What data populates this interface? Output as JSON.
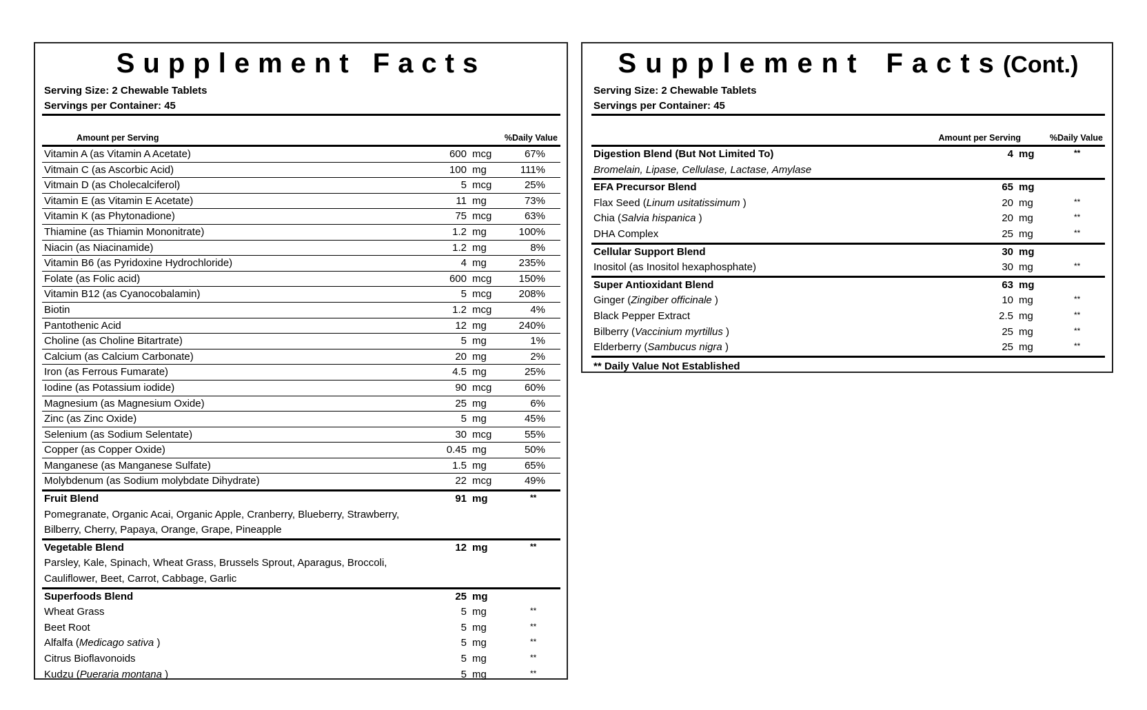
{
  "left": {
    "title": "Supplement Facts",
    "serving_size": "Serving Size: 2 Chewable Tablets",
    "servings_per_container": "Servings per Container: 45",
    "header_amount": "Amount per Serving",
    "header_dv": "%Daily Value",
    "vitamins": [
      {
        "name": "Vitamin A (as Vitamin A Acetate)",
        "amount": "600",
        "unit": "mcg",
        "dv": "67%"
      },
      {
        "name": "Vitmain C (as Ascorbic Acid)",
        "amount": "100",
        "unit": "mg",
        "dv": "111%"
      },
      {
        "name": "Vitmain D (as Cholecalciferol)",
        "amount": "5",
        "unit": "mcg",
        "dv": "25%"
      },
      {
        "name": "Vitamin E (as Vitamin E Acetate)",
        "amount": "11",
        "unit": "mg",
        "dv": "73%"
      },
      {
        "name": "Vitamin K (as Phytonadione)",
        "amount": "75",
        "unit": "mcg",
        "dv": "63%"
      },
      {
        "name": "Thiamine (as Thiamin Mononitrate)",
        "amount": "1.2",
        "unit": "mg",
        "dv": "100%"
      },
      {
        "name": "Niacin (as Niacinamide)",
        "amount": "1.2",
        "unit": "mg",
        "dv": "8%"
      },
      {
        "name": "Vitamin B6 (as Pyridoxine Hydrochloride)",
        "amount": "4",
        "unit": "mg",
        "dv": "235%"
      },
      {
        "name": "Folate (as Folic acid)",
        "amount": "600",
        "unit": "mcg",
        "dv": "150%"
      },
      {
        "name": "Vitamin B12 (as Cyanocobalamin)",
        "amount": "5",
        "unit": "mcg",
        "dv": "208%"
      },
      {
        "name": "Biotin",
        "amount": "1.2",
        "unit": "mcg",
        "dv": "4%"
      },
      {
        "name": "Pantothenic Acid",
        "amount": "12",
        "unit": "mg",
        "dv": "240%"
      },
      {
        "name": "Choline (as Choline Bitartrate)",
        "amount": "5",
        "unit": "mg",
        "dv": "1%"
      },
      {
        "name": "Calcium (as Calcium Carbonate)",
        "amount": "20",
        "unit": "mg",
        "dv": "2%"
      },
      {
        "name": "Iron (as Ferrous Fumarate)",
        "amount": "4.5",
        "unit": "mg",
        "dv": "25%"
      },
      {
        "name": "Iodine (as Potassium iodide)",
        "amount": "90",
        "unit": "mcg",
        "dv": "60%"
      },
      {
        "name": "Magnesium (as Magnesium Oxide)",
        "amount": "25",
        "unit": "mg",
        "dv": "6%"
      },
      {
        "name": "Zinc (as Zinc Oxide)",
        "amount": "5",
        "unit": "mg",
        "dv": "45%"
      },
      {
        "name": "Selenium (as Sodium Selentate)",
        "amount": "30",
        "unit": "mcg",
        "dv": "55%"
      },
      {
        "name": "Copper (as Copper Oxide)",
        "amount": "0.45",
        "unit": "mg",
        "dv": "50%"
      },
      {
        "name": "Manganese (as Manganese Sulfate)",
        "amount": "1.5",
        "unit": "mg",
        "dv": "65%"
      },
      {
        "name": "Molybdenum (as Sodium molybdate Dihydrate)",
        "amount": "22",
        "unit": "mcg",
        "dv": "49%"
      }
    ],
    "blends": [
      {
        "name": "Fruit Blend",
        "amount": "91",
        "unit": "mg",
        "dv": "**",
        "lines": [
          "Pomegranate, Organic Acai, Organic Apple, Cranberry, Blueberry, Strawberry,",
          "Bilberry, Cherry, Papaya, Orange, Grape, Pineapple"
        ]
      },
      {
        "name": "Vegetable Blend",
        "amount": "12",
        "unit": "mg",
        "dv": "**",
        "lines": [
          "Parsley, Kale, Spinach, Wheat Grass, Brussels Sprout, Aparagus, Broccoli,",
          "Cauliflower, Beet, Carrot, Cabbage, Garlic"
        ]
      },
      {
        "name": "Superfoods Blend",
        "amount": "25",
        "unit": "mg",
        "dv": "",
        "items": [
          {
            "name": "Wheat Grass",
            "latin": "",
            "amount": "5",
            "unit": "mg",
            "dv": "**"
          },
          {
            "name": "Beet Root",
            "latin": "",
            "amount": "5",
            "unit": "mg",
            "dv": "**"
          },
          {
            "name": "Alfalfa",
            "latin": "Medicago sativa",
            "amount": "5",
            "unit": "mg",
            "dv": "**"
          },
          {
            "name": "Citrus Bioflavonoids",
            "latin": "",
            "amount": "5",
            "unit": "mg",
            "dv": "**"
          },
          {
            "name": "Kudzu",
            "latin": "Pueraria montana",
            "amount": "5",
            "unit": "mg",
            "dv": "**"
          }
        ]
      }
    ]
  },
  "right": {
    "title_a": "Supplement",
    "title_b": "Facts",
    "title_cont": "(Cont.)",
    "serving_size": "Serving Size: 2 Chewable Tablets",
    "servings_per_container": "Servings per Container: 45",
    "header_amount": "Amount per Serving",
    "header_dv": "%Daily Value",
    "blends": [
      {
        "name": "Digestion Blend (But Not Limited To)",
        "amount": "4",
        "unit": "mg",
        "dv": "**",
        "italic_line": "Bromelain, Lipase, Cellulase, Lactase, Amylase",
        "items": []
      },
      {
        "name": "EFA Precursor Blend",
        "amount": "65",
        "unit": "mg",
        "dv": "",
        "items": [
          {
            "name": "Flax Seed",
            "latin": "Linum usitatissimum",
            "amount": "20",
            "unit": "mg",
            "dv": "**"
          },
          {
            "name": "Chia",
            "latin": "Salvia hispanica",
            "amount": "20",
            "unit": "mg",
            "dv": "**"
          },
          {
            "name": "DHA Complex",
            "latin": "",
            "amount": "25",
            "unit": "mg",
            "dv": "**"
          }
        ]
      },
      {
        "name": "Cellular Support Blend",
        "amount": "30",
        "unit": "mg",
        "dv": "",
        "items": [
          {
            "name": "Inositol (as Inositol hexaphosphate)",
            "latin": "",
            "amount": "30",
            "unit": "mg",
            "dv": "**"
          }
        ]
      },
      {
        "name": "Super Antioxidant Blend",
        "amount": "63",
        "unit": "mg",
        "dv": "",
        "items": [
          {
            "name": "Ginger",
            "latin": "Zingiber officinale",
            "amount": "10",
            "unit": "mg",
            "dv": "**"
          },
          {
            "name": "Black Pepper Extract",
            "latin": "",
            "amount": "2.5",
            "unit": "mg",
            "dv": "**"
          },
          {
            "name": "Bilberry",
            "latin": "Vaccinium myrtillus",
            "amount": "25",
            "unit": "mg",
            "dv": "**"
          },
          {
            "name": "Elderberry",
            "latin": "Sambucus nigra",
            "amount": "25",
            "unit": "mg",
            "dv": "**"
          }
        ]
      }
    ],
    "footnote": "** Daily Value Not Established"
  }
}
